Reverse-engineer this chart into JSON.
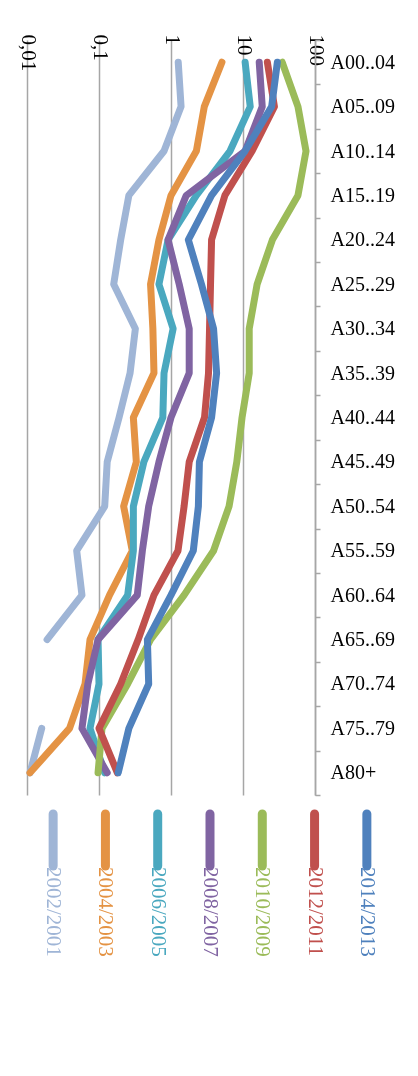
{
  "chart_data": {
    "type": "line",
    "orientation": "horizontal",
    "categories": [
      "A00..04",
      "A05..09",
      "A10..14",
      "A15..19",
      "A20..24",
      "A25..29",
      "A30..34",
      "A35..39",
      "A40..44",
      "A45..49",
      "A50..54",
      "A55..59",
      "A60..64",
      "A65..69",
      "A70..74",
      "A75..79",
      "A80+"
    ],
    "series": [
      {
        "name": "2002/2001",
        "color": "#9fb5d6",
        "values": [
          1.26,
          1.38,
          0.8,
          0.26,
          0.2,
          0.16,
          0.32,
          0.27,
          0.19,
          0.13,
          0.12,
          0.049,
          0.058,
          0.019,
          null,
          0.016,
          0.011
        ]
      },
      {
        "name": "2004/2003",
        "color": "#e49344",
        "values": [
          5.1,
          2.9,
          2.25,
          1.0,
          0.68,
          0.52,
          0.56,
          0.58,
          0.3,
          0.33,
          0.22,
          0.29,
          0.14,
          0.075,
          0.064,
          0.039,
          0.011
        ]
      },
      {
        "name": "2006/2005",
        "color": "#4aa8bf",
        "values": [
          10.7,
          12.6,
          6.6,
          2.25,
          0.91,
          0.68,
          1.07,
          0.8,
          0.77,
          0.42,
          0.3,
          0.3,
          0.25,
          0.097,
          0.1,
          0.075,
          0.12
        ]
      },
      {
        "name": "2008/2007",
        "color": "#8064a2",
        "values": [
          16.8,
          18.5,
          10.7,
          1.63,
          0.91,
          1.3,
          1.79,
          1.79,
          1.0,
          0.68,
          0.49,
          0.4,
          0.34,
          0.097,
          0.07,
          0.058,
          0.13
        ]
      },
      {
        "name": "2010/2009",
        "color": "#9bbb59",
        "values": [
          35,
          58,
          75,
          58,
          25.6,
          15.7,
          12.2,
          12.2,
          9.7,
          8.2,
          6.4,
          3.9,
          1.52,
          0.52,
          0.25,
          0.11,
          0.097
        ]
      },
      {
        "name": "2012/2011",
        "color": "#c0504d",
        "values": [
          21.8,
          27.3,
          13.4,
          5.6,
          3.66,
          3.54,
          3.43,
          3.32,
          2.92,
          1.79,
          1.52,
          1.25,
          0.58,
          0.35,
          0.2,
          0.1,
          0.18
        ]
      },
      {
        "name": "2014/2013",
        "color": "#4f81bd",
        "values": [
          30,
          25,
          10.7,
          3.66,
          1.74,
          2.65,
          3.9,
          4.3,
          3.66,
          2.48,
          2.4,
          2.04,
          1.0,
          0.47,
          0.49,
          0.26,
          0.185
        ]
      }
    ],
    "log": "x",
    "xlim": [
      0.01,
      100
    ],
    "xticks": [
      {
        "value": 0.01,
        "label": "0,01"
      },
      {
        "value": 0.1,
        "label": "0,1"
      },
      1,
      10,
      100
    ],
    "grid": "x",
    "legend": "bottom",
    "marker": "none",
    "line_style": "solid"
  }
}
